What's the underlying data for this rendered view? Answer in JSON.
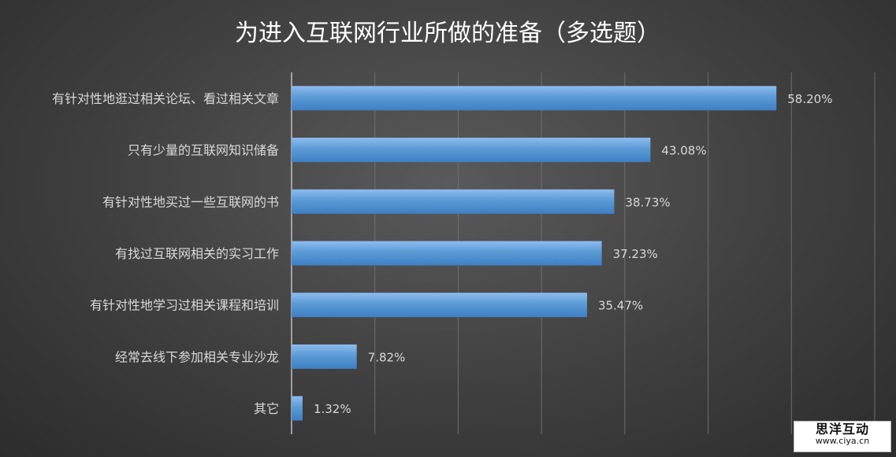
{
  "chart_data": {
    "type": "bar",
    "orientation": "horizontal",
    "title": "为进入互联网行业所做的准备（多选题）",
    "categories": [
      "有针对性地逛过相关论坛、看过相关文章",
      "只有少量的互联网知识储备",
      "有针对性地买过一些互联网的书",
      "有找过互联网相关的实习工作",
      "有针对性地学习过相关课程和培训",
      "经常去线下参加相关专业沙龙",
      "其它"
    ],
    "values": [
      58.2,
      43.08,
      38.73,
      37.23,
      35.47,
      7.82,
      1.32
    ],
    "value_labels": [
      "58.20%",
      "43.08%",
      "38.73%",
      "37.23%",
      "35.47%",
      "7.82%",
      "1.32%"
    ],
    "xlim": [
      0,
      70
    ],
    "grid": "vertical",
    "bar_color": "#5b9bd5"
  },
  "watermark": {
    "name": "思洋互动",
    "url": "www.ciya.cn"
  }
}
